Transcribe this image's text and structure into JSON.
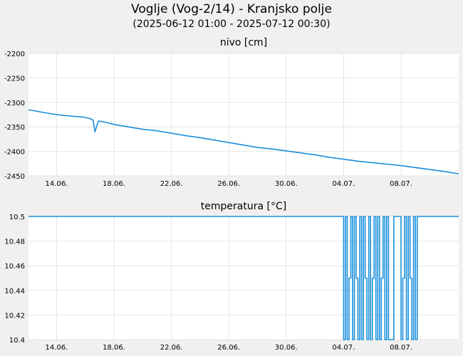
{
  "header": {
    "title": "Voglje (Vog-2/14) - Kranjsko polje",
    "subtitle": "(2025-06-12 01:00 - 2025-07-12 00:30)"
  },
  "colors": {
    "series": "#1a8fdd",
    "grid": "#e6e6e6",
    "plot_bg": "#ffffff",
    "page_bg": "#f0f0f0"
  },
  "chart_data": [
    {
      "type": "line",
      "title": "nivo [cm]",
      "xlabel": "",
      "ylabel": "",
      "xlim": [
        "2025-06-12 01:00",
        "2025-07-12 00:30"
      ],
      "ylim": [
        -2450,
        -2200
      ],
      "y_ticks": [
        "-2200",
        "-2250",
        "-2300",
        "-2350",
        "-2400",
        "-2450"
      ],
      "x_ticks": [
        {
          "date": "2025-06-14",
          "label": "14.06."
        },
        {
          "date": "2025-06-18",
          "label": "18.06."
        },
        {
          "date": "2025-06-22",
          "label": "22.06."
        },
        {
          "date": "2025-06-26",
          "label": "26.06."
        },
        {
          "date": "2025-06-30",
          "label": "30.06."
        },
        {
          "date": "2025-07-04",
          "label": "04.07."
        },
        {
          "date": "2025-07-08",
          "label": "08.07."
        }
      ],
      "grid": true,
      "series": [
        {
          "x": [
            "2025-06-12 01:00",
            "2025-06-13 00:00",
            "2025-06-14 00:00",
            "2025-06-15 00:00",
            "2025-06-15 20:00",
            "2025-06-16 08:00",
            "2025-06-16 13:00",
            "2025-06-16 16:00",
            "2025-06-16 22:00",
            "2025-06-17 12:00",
            "2025-06-18 00:00",
            "2025-06-19 00:00",
            "2025-06-20 00:00",
            "2025-06-21 00:00",
            "2025-06-22 00:00",
            "2025-06-23 00:00",
            "2025-06-24 00:00",
            "2025-06-25 00:00",
            "2025-06-26 00:00",
            "2025-06-27 00:00",
            "2025-06-28 00:00",
            "2025-06-29 00:00",
            "2025-06-30 00:00",
            "2025-07-01 00:00",
            "2025-07-02 00:00",
            "2025-07-03 00:00",
            "2025-07-04 00:00",
            "2025-07-05 00:00",
            "2025-07-06 00:00",
            "2025-07-07 00:00",
            "2025-07-08 00:00",
            "2025-07-09 00:00",
            "2025-07-10 00:00",
            "2025-07-11 00:00",
            "2025-07-12 00:30"
          ],
          "y": [
            -2315,
            -2320,
            -2325,
            -2328,
            -2330,
            -2333,
            -2336,
            -2360,
            -2338,
            -2341,
            -2345,
            -2350,
            -2355,
            -2358,
            -2363,
            -2368,
            -2372,
            -2377,
            -2382,
            -2387,
            -2392,
            -2395,
            -2399,
            -2403,
            -2407,
            -2412,
            -2416,
            -2420,
            -2423,
            -2426,
            -2429,
            -2433,
            -2437,
            -2441,
            -2446
          ]
        }
      ]
    },
    {
      "type": "line",
      "title": "temperatura [°C]",
      "xlabel": "",
      "ylabel": "",
      "xlim": [
        "2025-06-12 01:00",
        "2025-07-12 00:30"
      ],
      "ylim": [
        10.4,
        10.5
      ],
      "y_ticks": [
        "10.5",
        "10.48",
        "10.46",
        "10.44",
        "10.42",
        "10.4"
      ],
      "x_ticks": [
        {
          "date": "2025-06-14",
          "label": "14.06."
        },
        {
          "date": "2025-06-18",
          "label": "18.06."
        },
        {
          "date": "2025-06-22",
          "label": "22.06."
        },
        {
          "date": "2025-06-26",
          "label": "26.06."
        },
        {
          "date": "2025-06-30",
          "label": "30.06."
        },
        {
          "date": "2025-07-04",
          "label": "04.07."
        },
        {
          "date": "2025-07-08",
          "label": "08.07."
        }
      ],
      "grid": true,
      "series": [
        {
          "x": [
            "2025-06-12 01:00",
            "2025-07-04 00:00",
            "2025-07-04 00:00",
            "2025-07-04 03:00",
            "2025-07-04 03:00",
            "2025-07-04 06:00",
            "2025-07-04 06:00",
            "2025-07-04 09:00",
            "2025-07-04 09:00",
            "2025-07-04 12:00",
            "2025-07-04 12:00",
            "2025-07-04 15:00",
            "2025-07-04 15:00",
            "2025-07-04 18:00",
            "2025-07-04 18:00",
            "2025-07-04 21:00",
            "2025-07-04 21:00",
            "2025-07-05 00:00",
            "2025-07-05 00:00",
            "2025-07-05 03:00",
            "2025-07-05 03:00",
            "2025-07-05 06:00",
            "2025-07-05 06:00",
            "2025-07-05 09:00",
            "2025-07-05 09:00",
            "2025-07-05 12:00",
            "2025-07-05 12:00",
            "2025-07-05 15:00",
            "2025-07-05 15:00",
            "2025-07-05 18:00",
            "2025-07-05 18:00",
            "2025-07-05 21:00",
            "2025-07-05 21:00",
            "2025-07-06 00:00",
            "2025-07-06 00:00",
            "2025-07-06 03:00",
            "2025-07-06 03:00",
            "2025-07-06 06:00",
            "2025-07-06 06:00",
            "2025-07-06 09:00",
            "2025-07-06 09:00",
            "2025-07-06 12:00",
            "2025-07-06 12:00",
            "2025-07-06 15:00",
            "2025-07-06 15:00",
            "2025-07-06 18:00",
            "2025-07-06 18:00",
            "2025-07-06 21:00",
            "2025-07-06 21:00",
            "2025-07-07 00:00",
            "2025-07-07 00:00",
            "2025-07-07 03:00",
            "2025-07-07 03:00",
            "2025-07-07 12:00",
            "2025-07-07 12:00",
            "2025-07-08 00:00",
            "2025-07-08 00:00",
            "2025-07-08 03:00",
            "2025-07-08 03:00",
            "2025-07-08 06:00",
            "2025-07-08 06:00",
            "2025-07-08 09:00",
            "2025-07-08 09:00",
            "2025-07-08 12:00",
            "2025-07-08 12:00",
            "2025-07-08 15:00",
            "2025-07-08 15:00",
            "2025-07-08 18:00",
            "2025-07-08 18:00",
            "2025-07-08 21:00",
            "2025-07-08 21:00",
            "2025-07-09 00:00",
            "2025-07-09 00:00",
            "2025-07-09 03:00",
            "2025-07-09 03:00",
            "2025-07-09 06:00",
            "2025-07-09 06:00",
            "2025-07-12 00:30"
          ],
          "y": [
            10.5,
            10.5,
            10.4,
            10.4,
            10.5,
            10.5,
            10.4,
            10.4,
            10.45,
            10.45,
            10.5,
            10.5,
            10.4,
            10.4,
            10.5,
            10.5,
            10.45,
            10.45,
            10.4,
            10.4,
            10.5,
            10.5,
            10.4,
            10.4,
            10.5,
            10.5,
            10.45,
            10.45,
            10.4,
            10.4,
            10.5,
            10.5,
            10.4,
            10.4,
            10.45,
            10.45,
            10.5,
            10.5,
            10.4,
            10.4,
            10.5,
            10.5,
            10.4,
            10.4,
            10.45,
            10.45,
            10.5,
            10.5,
            10.4,
            10.4,
            10.5,
            10.5,
            10.4,
            10.4,
            10.5,
            10.5,
            10.4,
            10.4,
            10.45,
            10.45,
            10.5,
            10.5,
            10.4,
            10.4,
            10.5,
            10.5,
            10.45,
            10.45,
            10.4,
            10.4,
            10.5,
            10.5,
            10.4,
            10.4,
            10.5,
            10.5,
            10.5,
            10.5
          ]
        }
      ]
    }
  ]
}
